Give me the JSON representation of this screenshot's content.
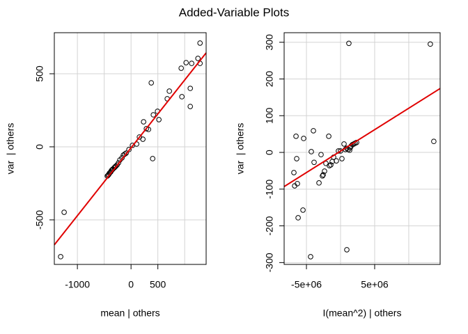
{
  "title": "Added-Variable Plots",
  "chart_data": [
    {
      "type": "scatter",
      "xlabel": "mean | others",
      "ylabel": "var  | others",
      "xlim": [
        -1430,
        1400
      ],
      "ylim": [
        -805,
        781
      ],
      "xticks": [
        -1000,
        0,
        500
      ],
      "yticks": [
        -500,
        0,
        500
      ],
      "xgrid": [
        -1000,
        -500,
        0,
        500,
        1000
      ],
      "ygrid": [
        -500,
        0,
        500
      ],
      "grid": true,
      "color": "#000000",
      "x": [
        -1312,
        -1247,
        -442,
        -429,
        -416,
        -403,
        -390,
        -377,
        -364,
        -351,
        -338,
        -312,
        -299,
        -286,
        -260,
        -234,
        -208,
        -169,
        -143,
        -117,
        -91,
        -39,
        26,
        104,
        156,
        221,
        234,
        286,
        325,
        377,
        403,
        416,
        494,
        519,
        675,
        714,
        935,
        948,
        1026,
        1104,
        1104,
        1130,
        1247,
        1286,
        1286
      ],
      "y": [
        -752,
        -448,
        -200,
        -195,
        -190,
        -181,
        -176,
        -171,
        -162,
        -157,
        -152,
        -143,
        -138,
        -133,
        -124,
        -110,
        -90,
        -76,
        -57,
        -50,
        -43,
        -19,
        10,
        19,
        67,
        52,
        171,
        124,
        119,
        438,
        -81,
        219,
        243,
        186,
        329,
        381,
        538,
        343,
        576,
        400,
        276,
        571,
        605,
        710,
        571
      ],
      "fit": {
        "color": "#e00000",
        "x": [
          -1430,
          1400
        ],
        "y": [
          -671,
          643
        ]
      }
    },
    {
      "type": "scatter",
      "xlabel": "I(mean^2) | others",
      "ylabel": "var  | others",
      "xlim": [
        -8270000,
        14600000
      ],
      "ylim": [
        -305,
        326
      ],
      "xticks": [
        {
          "value": -5000000,
          "label": "-5e+06"
        },
        {
          "value": 5000000,
          "label": "5e+06"
        }
      ],
      "yticks": [
        -300,
        -200,
        -100,
        0,
        100,
        200,
        300
      ],
      "xgrid": [
        -5000000,
        0,
        5000000,
        10000000
      ],
      "ygrid": [
        -300,
        -200,
        -100,
        0,
        100,
        200,
        300
      ],
      "grid": true,
      "color": "#000000",
      "x": [
        -6840000,
        -6430000,
        -6730000,
        -6330000,
        -6220000,
        -5510000,
        -6530000,
        -5410000,
        -4290000,
        -3980000,
        -3880000,
        -4390000,
        -3160000,
        -2860000,
        -2650000,
        -2550000,
        -2350000,
        -2140000,
        -1730000,
        -1630000,
        -1430000,
        -1220000,
        -1020000,
        -610000,
        -310000,
        0,
        200000,
        510000,
        710000,
        920000,
        1220000,
        920000,
        1120000,
        1330000,
        1430000,
        1530000,
        1730000,
        1940000,
        2140000,
        2350000,
        13160000,
        13670000
      ],
      "y": [
        -55,
        -17,
        -91,
        -85,
        -178,
        -157,
        44,
        38,
        2,
        59,
        -27,
        -284,
        -83,
        -6,
        -64,
        -61,
        -51,
        -30,
        44,
        -36,
        -34,
        -25,
        -13,
        -23,
        4,
        4,
        -17,
        23,
        8,
        11,
        297,
        -265,
        8,
        6,
        13,
        17,
        21,
        23,
        25,
        27,
        295,
        30
      ],
      "fit": {
        "color": "#e00000",
        "x": [
          -8270000,
          14600000
        ],
        "y": [
          -93,
          174
        ]
      }
    }
  ]
}
